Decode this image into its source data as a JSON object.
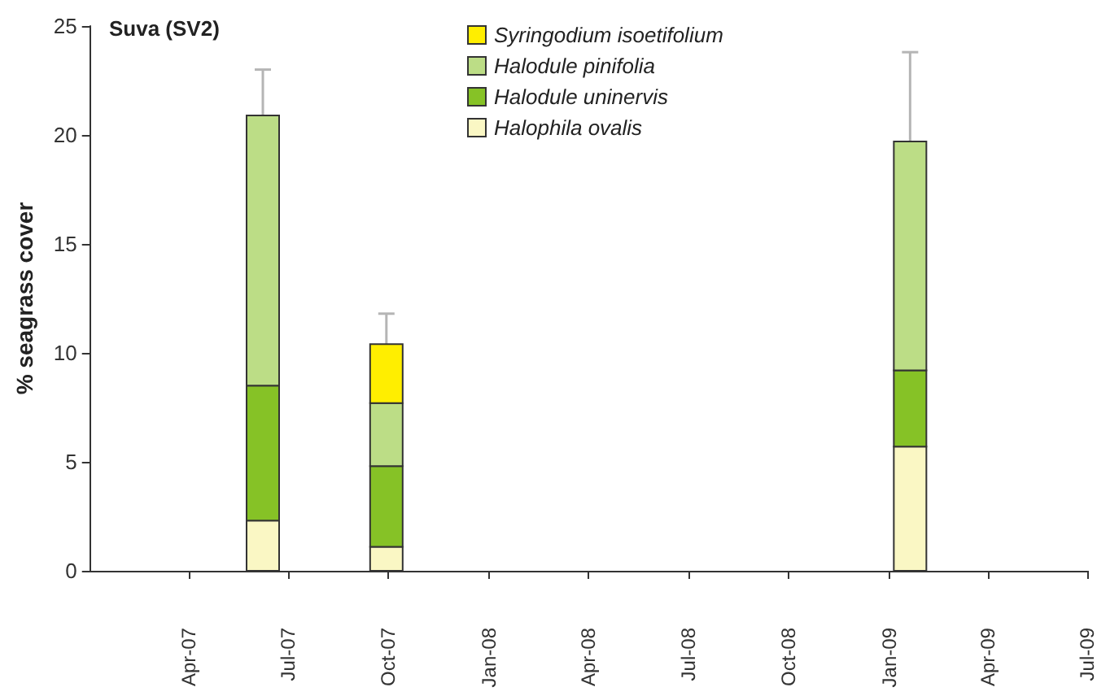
{
  "chart_data": {
    "type": "bar",
    "stacked": true,
    "title": "Suva (SV2)",
    "ylabel": "% seagrass cover",
    "x": [
      "2007-06-08",
      "2007-09-29",
      "2009-01-20"
    ],
    "series": [
      {
        "name": "Halophila ovalis",
        "color": "#faf7c4",
        "values": [
          2.3,
          1.1,
          5.7
        ]
      },
      {
        "name": "Halodule uninervis",
        "color": "#86c226",
        "values": [
          6.2,
          3.7,
          3.5
        ]
      },
      {
        "name": "Halodule pinifolia",
        "color": "#bcdd86",
        "values": [
          12.4,
          2.9,
          10.5
        ],
        "errors": [
          2.1,
          null,
          4.1
        ]
      },
      {
        "name": "Syringodium isoetifolium",
        "color": "#ffee00",
        "values": [
          null,
          2.7,
          null
        ],
        "errors": [
          null,
          1.4,
          null
        ]
      }
    ],
    "xlim": [
      "2007-01",
      "2009-07"
    ],
    "xticks": [
      {
        "value": "2007-04",
        "label": "Apr-07"
      },
      {
        "value": "2007-07",
        "label": "Jul-07"
      },
      {
        "value": "2007-10",
        "label": "Oct-07"
      },
      {
        "value": "2008-01",
        "label": "Jan-08"
      },
      {
        "value": "2008-04",
        "label": "Apr-08"
      },
      {
        "value": "2008-07",
        "label": "Jul-08"
      },
      {
        "value": "2008-10",
        "label": "Oct-08"
      },
      {
        "value": "2009-01",
        "label": "Jan-09"
      },
      {
        "value": "2009-04",
        "label": "Apr-09"
      },
      {
        "value": "2009-07",
        "label": "Jul-09"
      }
    ],
    "ylim": [
      0,
      25
    ],
    "yticks": [
      0,
      5,
      10,
      15,
      20,
      25
    ],
    "legend": "top",
    "grid": false
  }
}
